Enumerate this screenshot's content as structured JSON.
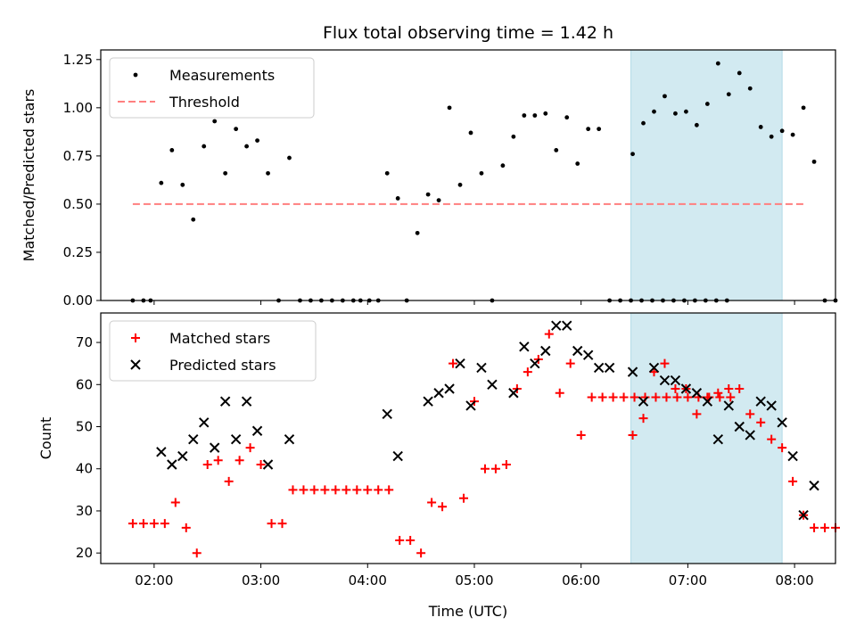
{
  "title": "Flux total observing time = 1.42 h",
  "xlabel": "Time (UTC)",
  "chart_data": [
    {
      "type": "scatter",
      "panel": "top",
      "ylabel": "Matched/Predicted stars",
      "xlim": [
        "01:30",
        "08:23"
      ],
      "ylim": [
        0,
        1.3
      ],
      "x_ticks": [
        "02:00",
        "03:00",
        "04:00",
        "05:00",
        "06:00",
        "07:00",
        "08:00"
      ],
      "y_ticks": [
        "0.00",
        "0.25",
        "0.50",
        "0.75",
        "1.00",
        "1.25"
      ],
      "y_tick_values": [
        0,
        0.25,
        0.5,
        0.75,
        1.0,
        1.25
      ],
      "shaded_region": [
        "06:28",
        "07:53"
      ],
      "legend": [
        {
          "label": "Measurements",
          "marker": "dot",
          "color": "#000000"
        },
        {
          "label": "Threshold",
          "marker": "dashed-line",
          "color": "#ff7f7f"
        }
      ],
      "threshold": {
        "value": 0.5,
        "x_start": "01:48",
        "x_end": "08:06"
      },
      "series": [
        {
          "name": "Measurements",
          "points": [
            [
              "01:48",
              0.0
            ],
            [
              "01:54",
              0.0
            ],
            [
              "01:58",
              0.0
            ],
            [
              "02:04",
              0.61
            ],
            [
              "02:10",
              0.78
            ],
            [
              "02:16",
              0.6
            ],
            [
              "02:22",
              0.42
            ],
            [
              "02:28",
              0.8
            ],
            [
              "02:34",
              0.93
            ],
            [
              "02:40",
              0.66
            ],
            [
              "02:46",
              0.89
            ],
            [
              "02:52",
              0.8
            ],
            [
              "02:58",
              0.83
            ],
            [
              "03:04",
              0.66
            ],
            [
              "03:10",
              0.0
            ],
            [
              "03:16",
              0.74
            ],
            [
              "03:22",
              0.0
            ],
            [
              "03:28",
              0.0
            ],
            [
              "03:34",
              0.0
            ],
            [
              "03:40",
              0.0
            ],
            [
              "03:46",
              0.0
            ],
            [
              "03:52",
              0.0
            ],
            [
              "03:56",
              0.0
            ],
            [
              "04:01",
              0.0
            ],
            [
              "04:06",
              0.0
            ],
            [
              "04:11",
              0.66
            ],
            [
              "04:17",
              0.53
            ],
            [
              "04:22",
              0.0
            ],
            [
              "04:28",
              0.35
            ],
            [
              "04:34",
              0.55
            ],
            [
              "04:40",
              0.52
            ],
            [
              "04:46",
              1.0
            ],
            [
              "04:52",
              0.6
            ],
            [
              "04:58",
              0.87
            ],
            [
              "05:04",
              0.66
            ],
            [
              "05:10",
              0.0
            ],
            [
              "05:16",
              0.7
            ],
            [
              "05:22",
              0.85
            ],
            [
              "05:28",
              0.96
            ],
            [
              "05:34",
              0.96
            ],
            [
              "05:40",
              0.97
            ],
            [
              "05:46",
              0.78
            ],
            [
              "05:52",
              0.95
            ],
            [
              "05:58",
              0.71
            ],
            [
              "06:04",
              0.89
            ],
            [
              "06:10",
              0.89
            ],
            [
              "06:16",
              0.0
            ],
            [
              "06:22",
              0.0
            ],
            [
              "06:28",
              0.0
            ],
            [
              "06:34",
              0.0
            ],
            [
              "06:40",
              0.0
            ],
            [
              "06:46",
              0.0
            ],
            [
              "06:52",
              0.0
            ],
            [
              "06:58",
              0.0
            ],
            [
              "07:04",
              0.0
            ],
            [
              "07:10",
              0.0
            ],
            [
              "07:16",
              0.0
            ],
            [
              "07:22",
              0.0
            ],
            [
              "06:29",
              0.76
            ],
            [
              "06:35",
              0.92
            ],
            [
              "06:41",
              0.98
            ],
            [
              "06:47",
              1.06
            ],
            [
              "06:53",
              0.97
            ],
            [
              "06:59",
              0.98
            ],
            [
              "07:05",
              0.91
            ],
            [
              "07:11",
              1.02
            ],
            [
              "07:17",
              1.23
            ],
            [
              "07:23",
              1.07
            ],
            [
              "07:29",
              1.18
            ],
            [
              "07:35",
              1.1
            ],
            [
              "07:41",
              0.9
            ],
            [
              "07:47",
              0.85
            ],
            [
              "07:53",
              0.88
            ],
            [
              "07:59",
              0.86
            ],
            [
              "08:05",
              1.0
            ],
            [
              "08:11",
              0.72
            ],
            [
              "08:17",
              0.0
            ],
            [
              "08:23",
              0.0
            ]
          ]
        }
      ]
    },
    {
      "type": "scatter",
      "panel": "bottom",
      "ylabel": "Count",
      "xlim": [
        "01:30",
        "08:23"
      ],
      "ylim": [
        17.5,
        77
      ],
      "x_ticks": [
        "02:00",
        "03:00",
        "04:00",
        "05:00",
        "06:00",
        "07:00",
        "08:00"
      ],
      "y_ticks": [
        "20",
        "30",
        "40",
        "50",
        "60",
        "70"
      ],
      "y_tick_values": [
        20,
        30,
        40,
        50,
        60,
        70
      ],
      "shaded_region": [
        "06:28",
        "07:53"
      ],
      "legend": [
        {
          "label": "Matched stars",
          "marker": "plus",
          "color": "#ff0000"
        },
        {
          "label": "Predicted stars",
          "marker": "x",
          "color": "#000000"
        }
      ],
      "series": [
        {
          "name": "Matched stars",
          "points": [
            [
              "01:48",
              27
            ],
            [
              "01:54",
              27
            ],
            [
              "02:00",
              27
            ],
            [
              "02:06",
              27
            ],
            [
              "02:12",
              32
            ],
            [
              "02:18",
              26
            ],
            [
              "02:24",
              20
            ],
            [
              "02:30",
              41
            ],
            [
              "02:36",
              42
            ],
            [
              "02:42",
              37
            ],
            [
              "02:48",
              42
            ],
            [
              "02:54",
              45
            ],
            [
              "03:00",
              41
            ],
            [
              "03:06",
              27
            ],
            [
              "03:12",
              27
            ],
            [
              "03:18",
              35
            ],
            [
              "03:24",
              35
            ],
            [
              "03:30",
              35
            ],
            [
              "03:36",
              35
            ],
            [
              "03:42",
              35
            ],
            [
              "03:48",
              35
            ],
            [
              "03:54",
              35
            ],
            [
              "04:00",
              35
            ],
            [
              "04:06",
              35
            ],
            [
              "04:12",
              35
            ],
            [
              "04:18",
              23
            ],
            [
              "04:24",
              23
            ],
            [
              "04:30",
              20
            ],
            [
              "04:36",
              32
            ],
            [
              "04:42",
              31
            ],
            [
              "04:48",
              65
            ],
            [
              "04:54",
              33
            ],
            [
              "05:00",
              56
            ],
            [
              "05:06",
              40
            ],
            [
              "05:12",
              40
            ],
            [
              "05:18",
              41
            ],
            [
              "05:24",
              59
            ],
            [
              "05:30",
              63
            ],
            [
              "05:36",
              66
            ],
            [
              "05:42",
              72
            ],
            [
              "05:48",
              58
            ],
            [
              "05:54",
              65
            ],
            [
              "06:00",
              48
            ],
            [
              "06:06",
              57
            ],
            [
              "06:12",
              57
            ],
            [
              "06:18",
              57
            ],
            [
              "06:24",
              57
            ],
            [
              "06:30",
              57
            ],
            [
              "06:36",
              57
            ],
            [
              "06:42",
              57
            ],
            [
              "06:48",
              57
            ],
            [
              "06:54",
              57
            ],
            [
              "07:00",
              57
            ],
            [
              "07:06",
              57
            ],
            [
              "07:12",
              57
            ],
            [
              "07:18",
              57
            ],
            [
              "07:24",
              57
            ],
            [
              "06:29",
              48
            ],
            [
              "06:35",
              52
            ],
            [
              "06:41",
              63
            ],
            [
              "06:47",
              65
            ],
            [
              "06:53",
              59
            ],
            [
              "06:59",
              59
            ],
            [
              "07:05",
              53
            ],
            [
              "07:11",
              57
            ],
            [
              "07:17",
              58
            ],
            [
              "07:23",
              59
            ],
            [
              "07:29",
              59
            ],
            [
              "07:35",
              53
            ],
            [
              "07:41",
              51
            ],
            [
              "07:47",
              47
            ],
            [
              "07:53",
              45
            ],
            [
              "07:59",
              37
            ],
            [
              "08:05",
              29
            ],
            [
              "08:11",
              26
            ],
            [
              "08:17",
              26
            ],
            [
              "08:23",
              26
            ]
          ]
        },
        {
          "name": "Predicted stars",
          "points": [
            [
              "02:04",
              44
            ],
            [
              "02:10",
              41
            ],
            [
              "02:16",
              43
            ],
            [
              "02:22",
              47
            ],
            [
              "02:28",
              51
            ],
            [
              "02:34",
              45
            ],
            [
              "02:40",
              56
            ],
            [
              "02:46",
              47
            ],
            [
              "02:52",
              56
            ],
            [
              "02:58",
              49
            ],
            [
              "03:04",
              41
            ],
            [
              "03:16",
              47
            ],
            [
              "04:11",
              53
            ],
            [
              "04:17",
              43
            ],
            [
              "04:34",
              56
            ],
            [
              "04:40",
              58
            ],
            [
              "04:46",
              59
            ],
            [
              "04:52",
              65
            ],
            [
              "04:58",
              55
            ],
            [
              "05:04",
              64
            ],
            [
              "05:10",
              60
            ],
            [
              "05:22",
              58
            ],
            [
              "05:28",
              69
            ],
            [
              "05:34",
              65
            ],
            [
              "05:40",
              68
            ],
            [
              "05:46",
              74
            ],
            [
              "05:52",
              74
            ],
            [
              "05:58",
              68
            ],
            [
              "06:04",
              67
            ],
            [
              "06:10",
              64
            ],
            [
              "06:16",
              64
            ],
            [
              "06:29",
              63
            ],
            [
              "06:35",
              56
            ],
            [
              "06:41",
              64
            ],
            [
              "06:47",
              61
            ],
            [
              "06:53",
              61
            ],
            [
              "06:59",
              59
            ],
            [
              "07:05",
              58
            ],
            [
              "07:11",
              56
            ],
            [
              "07:17",
              47
            ],
            [
              "07:23",
              55
            ],
            [
              "07:29",
              50
            ],
            [
              "07:35",
              48
            ],
            [
              "07:41",
              56
            ],
            [
              "07:47",
              55
            ],
            [
              "07:53",
              51
            ],
            [
              "07:59",
              43
            ],
            [
              "08:05",
              29
            ],
            [
              "08:11",
              36
            ]
          ]
        }
      ]
    }
  ]
}
